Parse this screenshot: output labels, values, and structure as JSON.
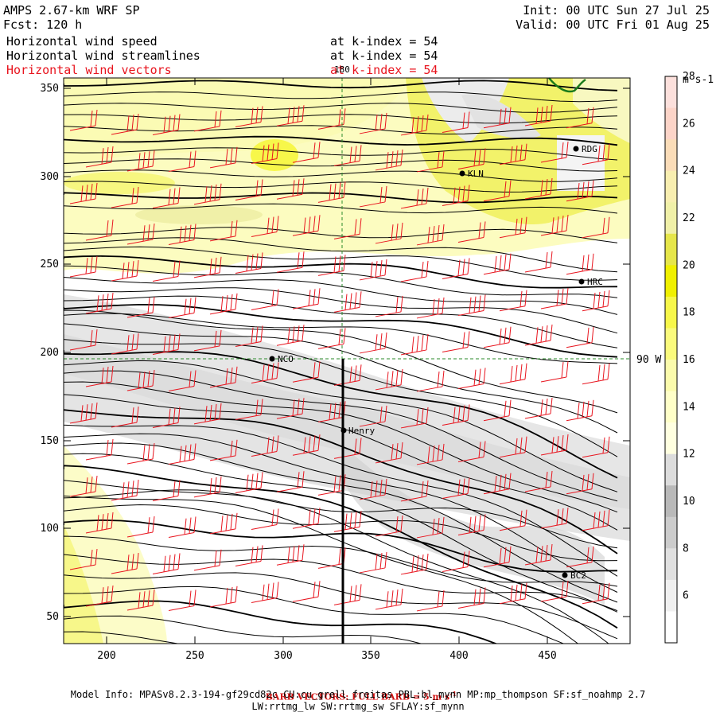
{
  "header": {
    "title": "AMPS 2.67-km WRF SP",
    "forecast": "Fcst: 120 h",
    "init": "Init: 00 UTC Sun 27 Jul 25",
    "valid": "Valid: 00 UTC Fri 01 Aug 25",
    "fields": [
      {
        "name": "Horizontal wind speed",
        "level": "at k-index = 54",
        "color": "#000000"
      },
      {
        "name": "Horizontal wind streamlines",
        "level": "at k-index = 54",
        "color": "#000000"
      },
      {
        "name": "Horizontal wind vectors",
        "level": "at k-index = 54",
        "color": "#e8141e"
      }
    ]
  },
  "map": {
    "x_ticks": [
      "200",
      "250",
      "300",
      "350",
      "400",
      "450"
    ],
    "y_ticks": [
      "50",
      "100",
      "150",
      "200",
      "250",
      "300",
      "350"
    ],
    "longitude_label_top": "180",
    "longitude_label_right": "90 W",
    "stations": [
      {
        "id": "KLN"
      },
      {
        "id": "RDG"
      },
      {
        "id": "HRC"
      },
      {
        "id": "NCO"
      },
      {
        "id": "Henry"
      },
      {
        "id": "BC2"
      }
    ]
  },
  "colorbar": {
    "units": "m s-1",
    "labels": [
      "6",
      "8",
      "10",
      "12",
      "14",
      "16",
      "18",
      "20",
      "22",
      "24",
      "26",
      "28"
    ],
    "colors": [
      "#ffffff",
      "#f0f0f0",
      "#e0e0e0",
      "#cccccc",
      "#b9b9b9",
      "#dcdcdc",
      "#ffffe0",
      "#ffffc8",
      "#fbfbac",
      "#fafa7c",
      "#f7f74a",
      "#f0f000",
      "#e6e64a",
      "#f0f0a8",
      "#f8eeb0",
      "#fadcb8",
      "#fcd4c8",
      "#fce0dc"
    ]
  },
  "footer": {
    "barb_note": "BARB VECTORS: FULL BARB = 5 m s",
    "barb_exp": "-1",
    "model_info": "Model Info: MPASv8.2.3-194-gf29cd82c CU:cu_grell_freitas PBL:bl_mynn MP:mp_thompson SF:sf_noahmp 2.7",
    "model_info2": "LW:rrtmg_lw SW:rrtmg_sw SFLAY:sf_mynn"
  }
}
